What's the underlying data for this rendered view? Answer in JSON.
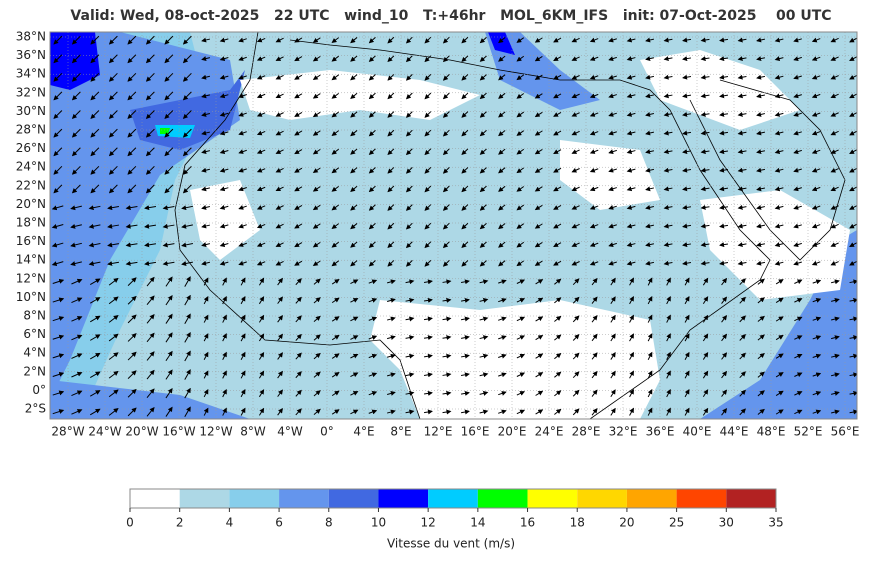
{
  "title": "Valid: Wed, 08-oct-2025   22 UTC   wind_10   T:+46hr   MOL_6KM_IFS   init: 07-Oct-2025    00 UTC",
  "lat_labels": [
    "38°N",
    "36°N",
    "34°N",
    "32°N",
    "30°N",
    "28°N",
    "26°N",
    "24°N",
    "22°N",
    "20°N",
    "18°N",
    "16°N",
    "14°N",
    "12°N",
    "10°N",
    "8°N",
    "6°N",
    "4°N",
    "2°N",
    "0°",
    "2°S"
  ],
  "lon_labels": [
    "28°W",
    "24°W",
    "20°W",
    "16°W",
    "12°W",
    "8°W",
    "4°W",
    "0°",
    "4°E",
    "8°E",
    "12°E",
    "16°E",
    "20°E",
    "24°E",
    "28°E",
    "32°E",
    "36°E",
    "40°E",
    "44°E",
    "48°E",
    "52°E",
    "56°E"
  ],
  "colorbar": {
    "ticks": [
      0,
      2,
      4,
      6,
      8,
      10,
      12,
      14,
      16,
      18,
      20,
      25,
      30,
      35
    ],
    "colors": [
      "#ffffff",
      "#add8e6",
      "#87ceeb",
      "#6495ed",
      "#4169e1",
      "#0000ff",
      "#00ccff",
      "#00ff00",
      "#ffff00",
      "#ffd700",
      "#ffa500",
      "#ff4500",
      "#b22222"
    ],
    "label": "Vitesse du vent (m/s)"
  }
}
